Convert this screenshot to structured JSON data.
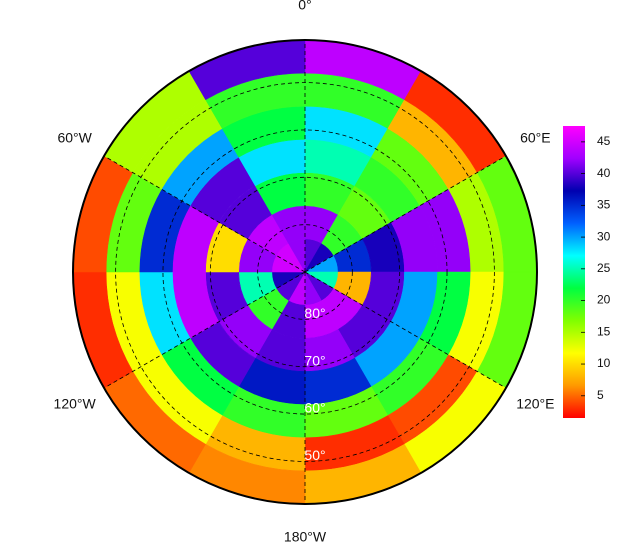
{
  "chart_data": {
    "type": "polar-heatmap",
    "latlim": [
      -90,
      -41
    ],
    "lat_edges": [
      -90,
      -83,
      -76,
      -69,
      -62,
      -55,
      -48,
      -41
    ],
    "lon_edges": [
      0,
      30,
      60,
      90,
      120,
      150,
      180,
      210,
      240,
      270,
      300,
      330,
      360
    ],
    "values": [
      [
        40,
        38,
        30,
        25,
        40,
        42,
        44,
        40,
        38,
        45,
        45,
        42
      ],
      [
        42,
        20,
        35,
        8,
        44,
        44,
        40,
        20,
        25,
        42,
        44,
        42
      ],
      [
        20,
        18,
        38,
        40,
        40,
        42,
        40,
        42,
        40,
        10,
        40,
        22
      ],
      [
        25,
        20,
        42,
        30,
        30,
        35,
        36,
        40,
        44,
        44,
        40,
        28
      ],
      [
        28,
        18,
        42,
        22,
        20,
        18,
        20,
        22,
        28,
        35,
        30,
        22
      ],
      [
        20,
        8,
        15,
        12,
        4,
        3,
        8,
        12,
        12,
        18,
        15,
        20
      ],
      [
        44,
        3,
        18,
        18,
        12,
        8,
        6,
        5,
        3,
        4,
        15,
        40
      ]
    ],
    "clim": [
      1.5,
      47.5
    ],
    "colormap": [
      "#ff0000",
      "#ff9900",
      "#ffff00",
      "#80ff00",
      "#00ff40",
      "#00ffff",
      "#0060ff",
      "#0000b0",
      "#a000ff",
      "#ff00ff"
    ],
    "colorbar_ticks": [
      5,
      10,
      15,
      20,
      25,
      30,
      35,
      40,
      45
    ],
    "meridians": [
      {
        "value": 0,
        "label": "0°"
      },
      {
        "value": 60,
        "label": "60°E"
      },
      {
        "value": 120,
        "label": "120°E"
      },
      {
        "value": 180,
        "label": "180°W"
      },
      {
        "value": -120,
        "label": "120°W"
      },
      {
        "value": -60,
        "label": "60°W"
      }
    ],
    "lat_circles": [
      {
        "value": -80,
        "label": "80°"
      },
      {
        "value": -70,
        "label": "70°"
      },
      {
        "value": -60,
        "label": "60°"
      },
      {
        "value": -50,
        "label": "50°"
      }
    ]
  }
}
